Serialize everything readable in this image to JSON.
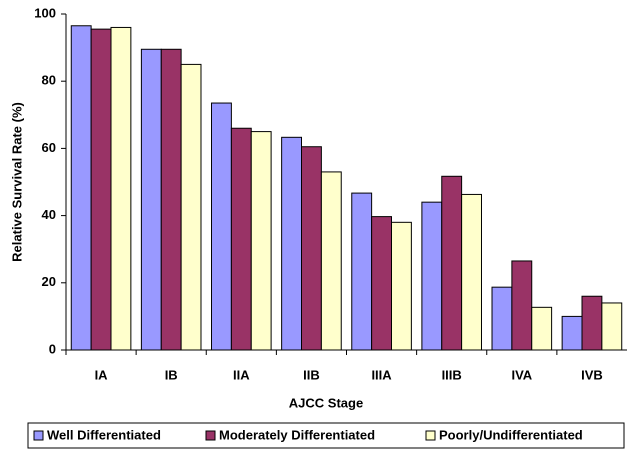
{
  "chart_data": {
    "type": "bar",
    "x_label": "AJCC Stage",
    "y_label": "Relative Survival Rate (%)",
    "categories": [
      "IA",
      "IB",
      "IIA",
      "IIB",
      "IIIA",
      "IIIB",
      "IVA",
      "IVB"
    ],
    "series": [
      {
        "name": "Well Differentiated",
        "color": "#9999ff",
        "values": [
          96.5,
          89.5,
          73.5,
          63.3,
          46.7,
          44,
          18.7,
          10
        ]
      },
      {
        "name": "Moderately Differentiated",
        "color": "#993366",
        "values": [
          95.5,
          89.5,
          66,
          60.5,
          39.7,
          51.7,
          26.5,
          16
        ]
      },
      {
        "name": "Poorly/Undifferentiated",
        "color": "#ffffcc",
        "values": [
          96,
          85,
          65,
          53,
          38,
          46.3,
          12.7,
          14
        ]
      }
    ],
    "ylim": [
      0,
      100
    ],
    "yticks": [
      0,
      20,
      40,
      60,
      80,
      100
    ],
    "grid": false,
    "legend": "bottom"
  }
}
